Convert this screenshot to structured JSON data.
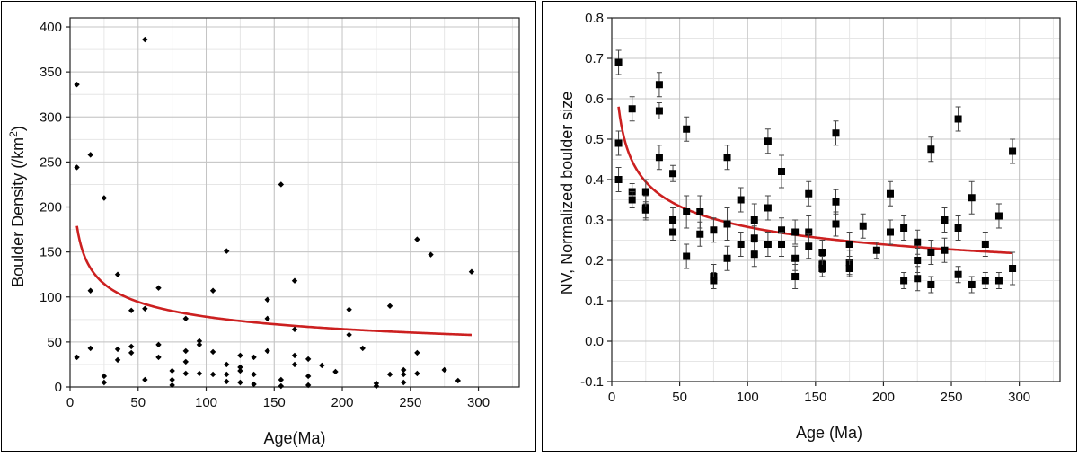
{
  "chart_data": [
    {
      "type": "scatter",
      "title": "",
      "xlabel": "Age(Ma)",
      "ylabel": "Boulder Density (/km²)",
      "ylabel_main": "Boulder Density (/km",
      "ylabel_sup": "2",
      "ylabel_end": ")",
      "xlim": [
        0,
        330
      ],
      "ylim": [
        0,
        410
      ],
      "xticks": [
        0,
        50,
        100,
        150,
        200,
        250,
        300
      ],
      "yticks": [
        0,
        50,
        100,
        150,
        200,
        250,
        300,
        350,
        400
      ],
      "grid": true,
      "marker": "diamond",
      "marker_color": "#000000",
      "fit_color": "#cc2020",
      "fit": {
        "type": "power",
        "a": 279.4,
        "b": -0.277,
        "x_range": [
          5,
          295
        ]
      },
      "points": [
        [
          5,
          336
        ],
        [
          5,
          244
        ],
        [
          5,
          33
        ],
        [
          15,
          258
        ],
        [
          15,
          107
        ],
        [
          15,
          43
        ],
        [
          25,
          210
        ],
        [
          25,
          12
        ],
        [
          25,
          5
        ],
        [
          35,
          125
        ],
        [
          35,
          42
        ],
        [
          35,
          30
        ],
        [
          45,
          85
        ],
        [
          45,
          45
        ],
        [
          45,
          38
        ],
        [
          55,
          386
        ],
        [
          55,
          87
        ],
        [
          55,
          8
        ],
        [
          65,
          110
        ],
        [
          65,
          47
        ],
        [
          65,
          33
        ],
        [
          75,
          18
        ],
        [
          75,
          8
        ],
        [
          75,
          2
        ],
        [
          85,
          76
        ],
        [
          85,
          40
        ],
        [
          85,
          28
        ],
        [
          85,
          15
        ],
        [
          95,
          51
        ],
        [
          95,
          47
        ],
        [
          95,
          15
        ],
        [
          105,
          107
        ],
        [
          105,
          39
        ],
        [
          105,
          14
        ],
        [
          115,
          151
        ],
        [
          115,
          25
        ],
        [
          115,
          14
        ],
        [
          115,
          6
        ],
        [
          125,
          35
        ],
        [
          125,
          22
        ],
        [
          125,
          18
        ],
        [
          125,
          5
        ],
        [
          135,
          33
        ],
        [
          135,
          14
        ],
        [
          135,
          3
        ],
        [
          145,
          97
        ],
        [
          145,
          76
        ],
        [
          145,
          40
        ],
        [
          155,
          225
        ],
        [
          155,
          8
        ],
        [
          155,
          1
        ],
        [
          165,
          118
        ],
        [
          165,
          64
        ],
        [
          165,
          35
        ],
        [
          165,
          25
        ],
        [
          175,
          31
        ],
        [
          175,
          12
        ],
        [
          175,
          2
        ],
        [
          185,
          24
        ],
        [
          195,
          17
        ],
        [
          205,
          86
        ],
        [
          205,
          58
        ],
        [
          215,
          43
        ],
        [
          225,
          4
        ],
        [
          225,
          1
        ],
        [
          235,
          90
        ],
        [
          235,
          14
        ],
        [
          245,
          19
        ],
        [
          245,
          14
        ],
        [
          245,
          5
        ],
        [
          255,
          164
        ],
        [
          255,
          38
        ],
        [
          255,
          15
        ],
        [
          265,
          147
        ],
        [
          275,
          19
        ],
        [
          285,
          7
        ],
        [
          295,
          128
        ]
      ]
    },
    {
      "type": "scatter",
      "title": "",
      "xlabel": "Age (Ma)",
      "ylabel": "NV, Normalized boulder size",
      "xlim": [
        0,
        330
      ],
      "ylim": [
        -0.1,
        0.8
      ],
      "xticks": [
        0,
        50,
        100,
        150,
        200,
        250,
        300
      ],
      "yticks": [
        -0.1,
        0.0,
        0.1,
        0.2,
        0.3,
        0.4,
        0.5,
        0.6,
        0.7,
        0.8
      ],
      "ytick_labels": [
        "-0.1",
        "0.0",
        "0.1",
        "0.2",
        "0.3",
        "0.4",
        "0.5",
        "0.6",
        "0.7",
        "0.8"
      ],
      "grid": true,
      "marker": "square",
      "marker_color": "#000000",
      "fit_color": "#cc2020",
      "fit": {
        "type": "power",
        "a": 0.854,
        "b": -0.24,
        "x_range": [
          5,
          295
        ]
      },
      "points": [
        [
          5,
          0.69,
          0.03
        ],
        [
          5,
          0.49,
          0.03
        ],
        [
          5,
          0.4,
          0.03
        ],
        [
          15,
          0.575,
          0.03
        ],
        [
          15,
          0.37,
          0.02
        ],
        [
          15,
          0.35,
          0.02
        ],
        [
          25,
          0.37,
          0.03
        ],
        [
          25,
          0.33,
          0.03
        ],
        [
          25,
          0.325,
          0.02
        ],
        [
          35,
          0.635,
          0.03
        ],
        [
          35,
          0.57,
          0.02
        ],
        [
          35,
          0.455,
          0.03
        ],
        [
          45,
          0.415,
          0.02
        ],
        [
          45,
          0.3,
          0.03
        ],
        [
          45,
          0.27,
          0.02
        ],
        [
          55,
          0.525,
          0.03
        ],
        [
          55,
          0.32,
          0.04
        ],
        [
          55,
          0.21,
          0.03
        ],
        [
          65,
          0.32,
          0.04
        ],
        [
          65,
          0.265,
          0.03
        ],
        [
          75,
          0.275,
          0.03
        ],
        [
          75,
          0.16,
          0.03
        ],
        [
          75,
          0.15,
          0.02
        ],
        [
          85,
          0.455,
          0.03
        ],
        [
          85,
          0.29,
          0.04
        ],
        [
          85,
          0.205,
          0.03
        ],
        [
          95,
          0.35,
          0.03
        ],
        [
          95,
          0.24,
          0.03
        ],
        [
          105,
          0.3,
          0.04
        ],
        [
          105,
          0.255,
          0.03
        ],
        [
          105,
          0.215,
          0.03
        ],
        [
          115,
          0.495,
          0.03
        ],
        [
          115,
          0.33,
          0.03
        ],
        [
          115,
          0.24,
          0.03
        ],
        [
          125,
          0.42,
          0.04
        ],
        [
          125,
          0.275,
          0.03
        ],
        [
          125,
          0.24,
          0.03
        ],
        [
          135,
          0.27,
          0.03
        ],
        [
          135,
          0.205,
          0.03
        ],
        [
          135,
          0.16,
          0.03
        ],
        [
          145,
          0.365,
          0.03
        ],
        [
          145,
          0.27,
          0.04
        ],
        [
          145,
          0.235,
          0.03
        ],
        [
          155,
          0.22,
          0.03
        ],
        [
          155,
          0.19,
          0.02
        ],
        [
          155,
          0.18,
          0.02
        ],
        [
          165,
          0.515,
          0.03
        ],
        [
          165,
          0.345,
          0.03
        ],
        [
          165,
          0.29,
          0.03
        ],
        [
          175,
          0.24,
          0.03
        ],
        [
          175,
          0.195,
          0.03
        ],
        [
          175,
          0.18,
          0.02
        ],
        [
          185,
          0.285,
          0.03
        ],
        [
          195,
          0.225,
          0.02
        ],
        [
          205,
          0.365,
          0.03
        ],
        [
          205,
          0.27,
          0.03
        ],
        [
          215,
          0.28,
          0.03
        ],
        [
          215,
          0.15,
          0.02
        ],
        [
          225,
          0.245,
          0.03
        ],
        [
          225,
          0.2,
          0.03
        ],
        [
          225,
          0.155,
          0.03
        ],
        [
          235,
          0.475,
          0.03
        ],
        [
          235,
          0.22,
          0.03
        ],
        [
          235,
          0.14,
          0.02
        ],
        [
          245,
          0.3,
          0.03
        ],
        [
          245,
          0.225,
          0.03
        ],
        [
          255,
          0.55,
          0.03
        ],
        [
          255,
          0.28,
          0.03
        ],
        [
          255,
          0.165,
          0.02
        ],
        [
          265,
          0.355,
          0.04
        ],
        [
          265,
          0.14,
          0.02
        ],
        [
          275,
          0.24,
          0.03
        ],
        [
          275,
          0.15,
          0.02
        ],
        [
          285,
          0.31,
          0.03
        ],
        [
          285,
          0.15,
          0.02
        ],
        [
          295,
          0.47,
          0.03
        ],
        [
          295,
          0.18,
          0.04
        ]
      ]
    }
  ]
}
